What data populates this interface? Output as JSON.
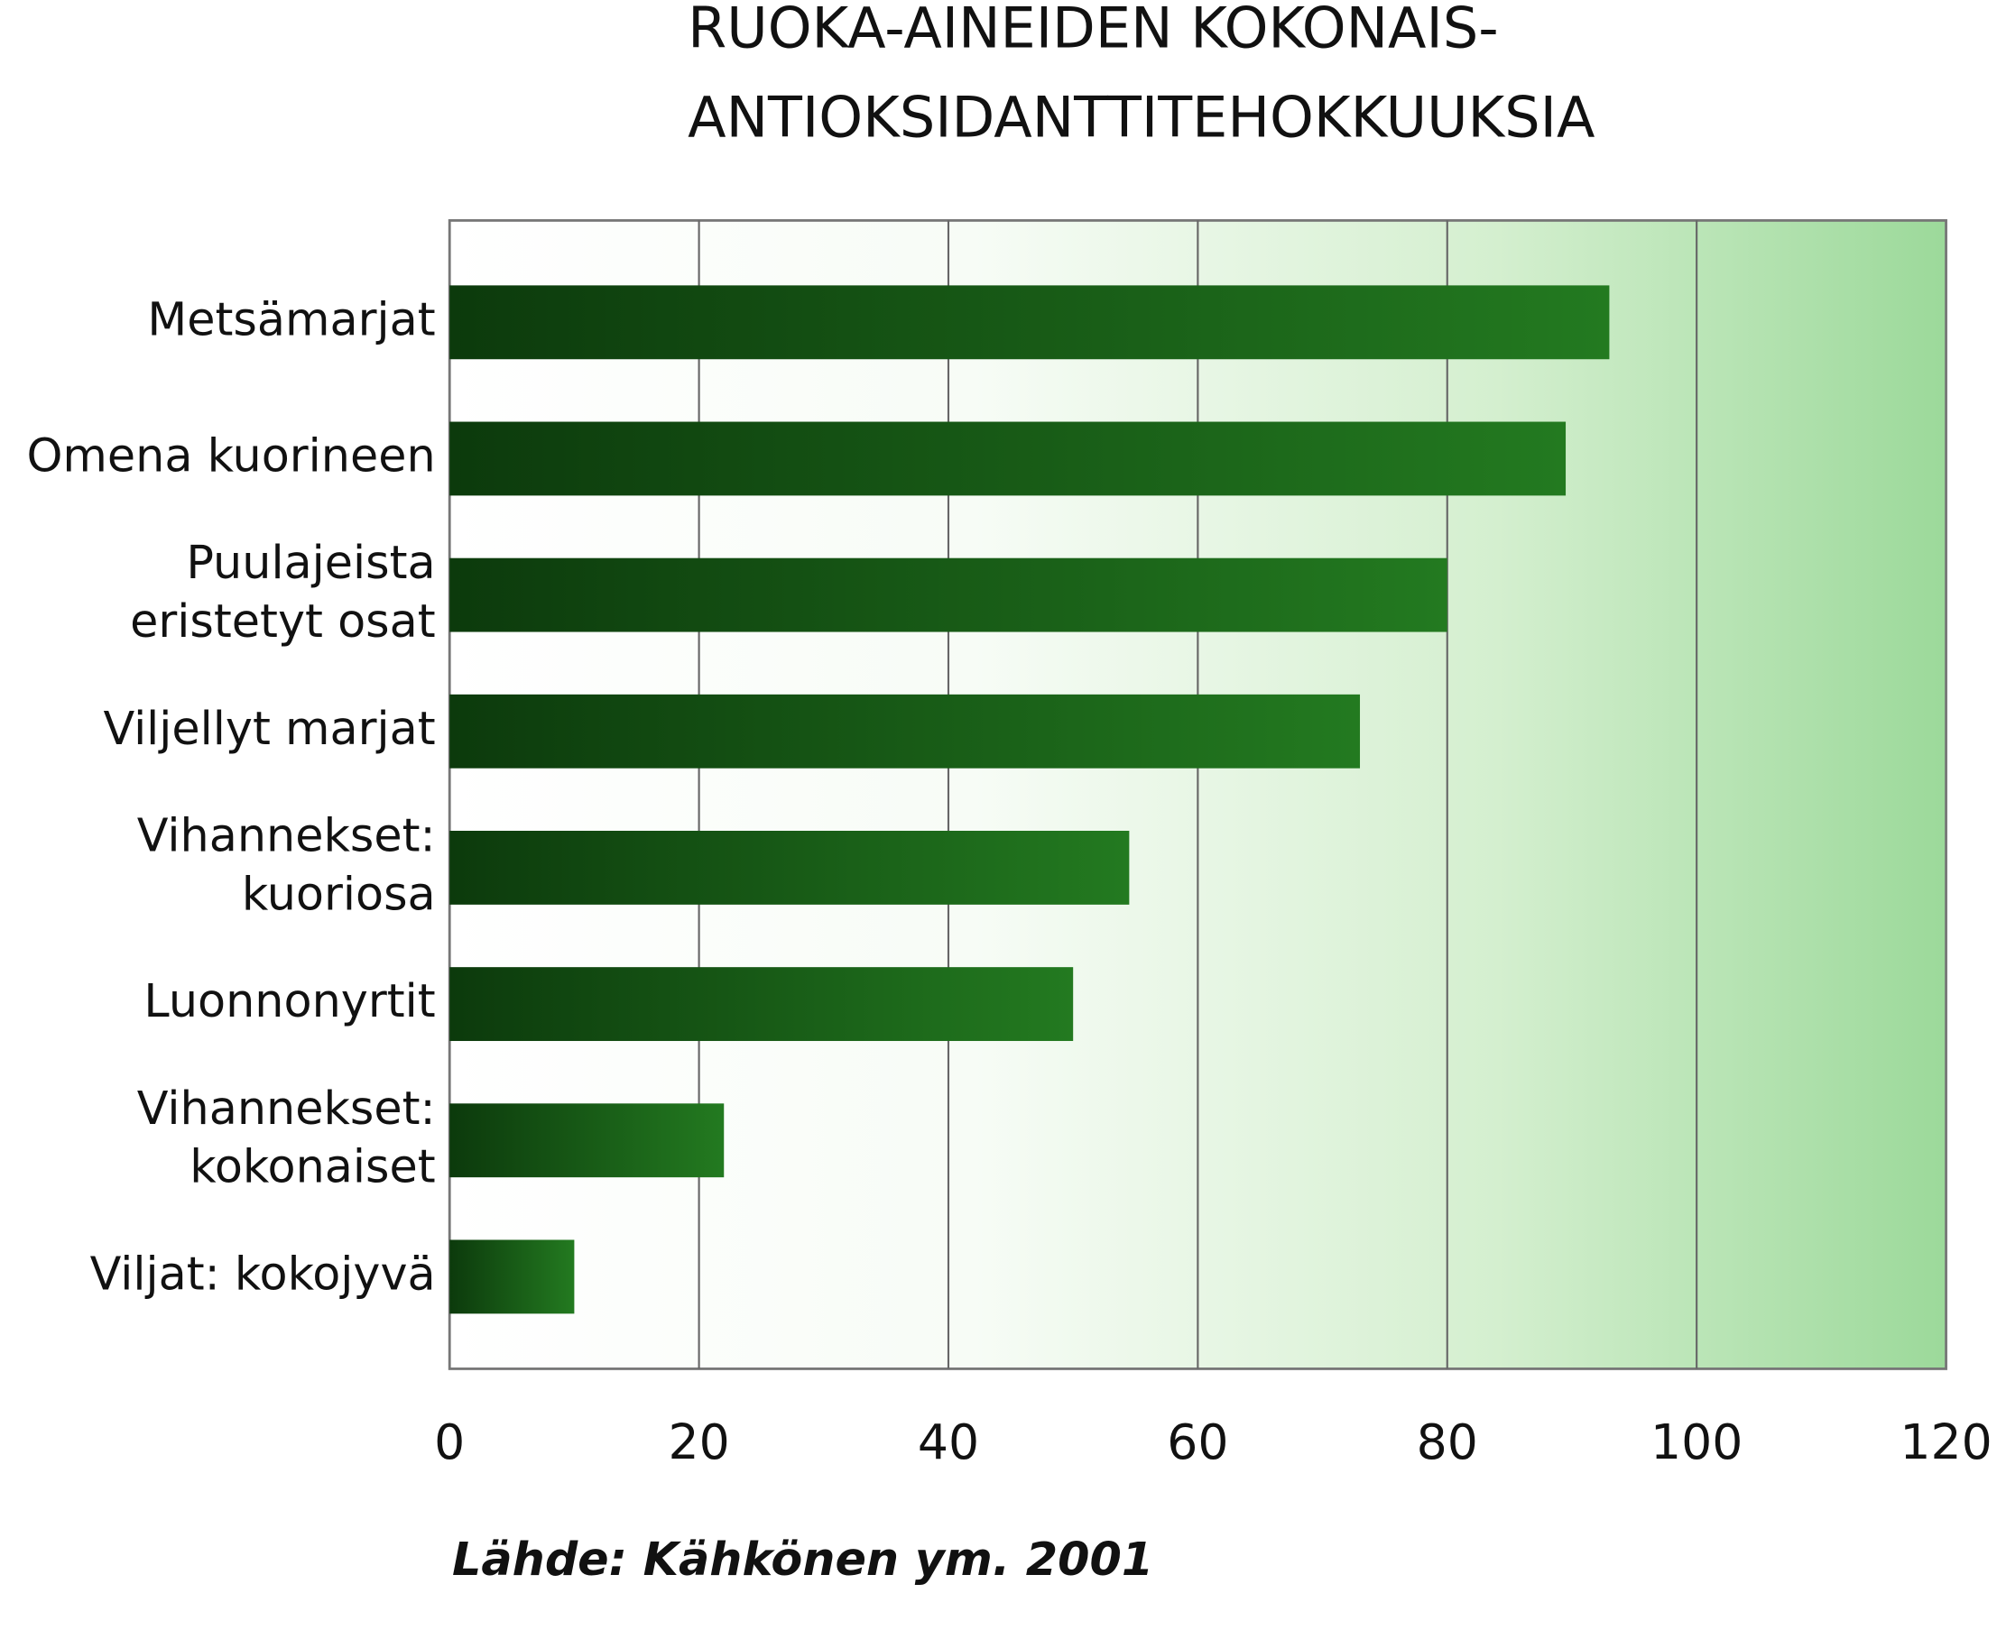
{
  "chart_data": {
    "type": "bar",
    "orientation": "horizontal",
    "title": "RUOKA-AINEIDEN KOKONAIS-\nANTIOKSIDANTTITEHOKKUUKSIA",
    "categories": [
      "Metsämarjat",
      "Omena kuorineen",
      "Puulajeista\neristetyt osat",
      "Viljellyt marjat",
      "Vihannekset:\nkuoriosa",
      "Luonnonyrtit",
      "Vihannekset:\nkokonaiset",
      "Viljat: kokojyvä"
    ],
    "values": [
      93,
      89.5,
      80,
      73,
      54.5,
      50,
      22,
      10
    ],
    "color": "#1f6b1a",
    "xlim": [
      0,
      120
    ],
    "xticks": [
      0,
      20,
      40,
      60,
      80,
      100,
      120
    ],
    "grid": true,
    "note": "Lähde: Kähkönen ym. 2001"
  }
}
